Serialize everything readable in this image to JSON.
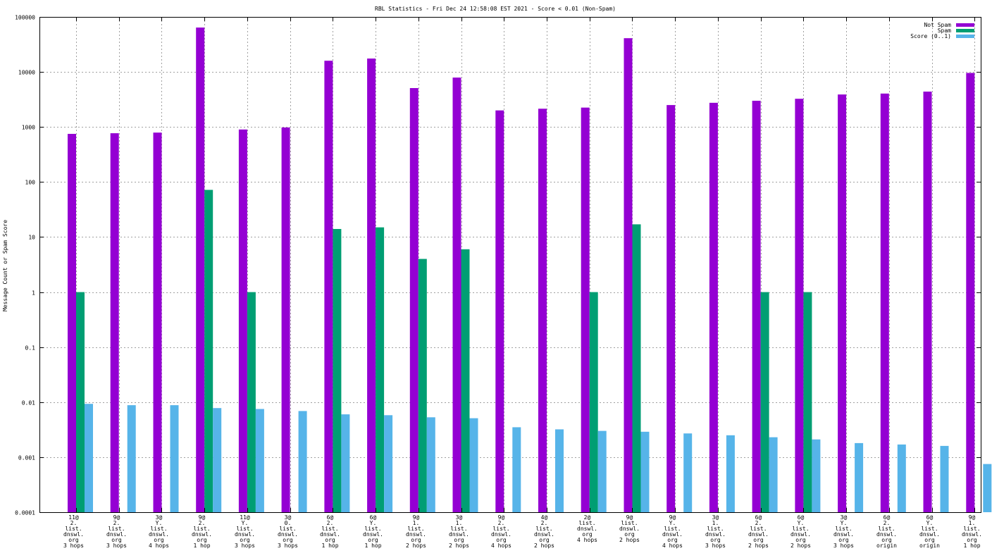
{
  "chart_data": {
    "type": "bar",
    "title": "RBL Statistics - Fri Dec 24 12:58:08 EST 2021 - Score < 0.01 (Non-Spam)",
    "ylabel": "Message Count or Spam Score",
    "xlabel": "",
    "yscale": "log",
    "ylim": [
      0.0001,
      100000
    ],
    "yticks": [
      "0.0001",
      "0.001",
      "0.01",
      "0.1",
      "1",
      "10",
      "100",
      "1000",
      "10000",
      "100000"
    ],
    "grid": true,
    "legend_position": "top-right",
    "categories": [
      [
        "11@",
        "2.",
        "list.",
        "dnswl.",
        "org",
        "3 hops"
      ],
      [
        "9@",
        "2.",
        "list.",
        "dnswl.",
        "org",
        "3 hops"
      ],
      [
        "3@",
        "Y.",
        "list.",
        "dnswl.",
        "org",
        "4 hops"
      ],
      [
        "9@",
        "2.",
        "list.",
        "dnswl.",
        "org",
        "1 hop"
      ],
      [
        "11@",
        "Y.",
        "list.",
        "dnswl.",
        "org",
        "3 hops"
      ],
      [
        "3@",
        "0.",
        "list.",
        "dnswl.",
        "org",
        "3 hops"
      ],
      [
        "6@",
        "2.",
        "list.",
        "dnswl.",
        "org",
        "1 hop"
      ],
      [
        "6@",
        "Y.",
        "list.",
        "dnswl.",
        "org",
        "1 hop"
      ],
      [
        "9@",
        "1.",
        "list.",
        "dnswl.",
        "org",
        "2 hops"
      ],
      [
        "3@",
        "1.",
        "list.",
        "dnswl.",
        "org",
        "2 hops"
      ],
      [
        "9@",
        "2.",
        "list.",
        "dnswl.",
        "org",
        "4 hops"
      ],
      [
        "4@",
        "2.",
        "list.",
        "dnswl.",
        "org",
        "2 hops"
      ],
      [
        "2@",
        "list.",
        "dnswl.",
        "org",
        "4 hops"
      ],
      [
        "9@",
        "list.",
        "dnswl.",
        "org",
        "2 hops"
      ],
      [
        "9@",
        "Y.",
        "list.",
        "dnswl.",
        "org",
        "4 hops"
      ],
      [
        "3@",
        "1.",
        "list.",
        "dnswl.",
        "org",
        "3 hops"
      ],
      [
        "6@",
        "2.",
        "list.",
        "dnswl.",
        "org",
        "2 hops"
      ],
      [
        "6@",
        "Y.",
        "list.",
        "dnswl.",
        "org",
        "2 hops"
      ],
      [
        "3@",
        "Y.",
        "list.",
        "dnswl.",
        "org",
        "3 hops"
      ],
      [
        "6@",
        "2.",
        "list.",
        "dnswl.",
        "org",
        "origin"
      ],
      [
        "6@",
        "Y.",
        "list.",
        "dnswl.",
        "org",
        "origin"
      ],
      [
        "9@",
        "1.",
        "list.",
        "dnswl.",
        "org",
        "1 hop"
      ]
    ],
    "series": [
      {
        "name": "Not Spam",
        "color": "#9400d3",
        "values": [
          750,
          770,
          790,
          64000,
          900,
          980,
          16000,
          17500,
          5100,
          7900,
          2000,
          2150,
          2250,
          41000,
          2500,
          2750,
          3000,
          3250,
          3900,
          4050,
          4400,
          9600
        ]
      },
      {
        "name": "Spam",
        "color": "#009e73",
        "values": [
          1,
          null,
          null,
          72,
          1,
          null,
          14,
          15,
          4,
          6,
          null,
          null,
          1,
          17,
          null,
          null,
          1,
          1,
          null,
          null,
          null,
          null
        ]
      },
      {
        "name": "Score (0..1)",
        "color": "#56b4e9",
        "values": [
          0.0093,
          0.0088,
          0.0088,
          0.0078,
          0.0075,
          0.0069,
          0.006,
          0.0058,
          0.0053,
          0.0051,
          0.0035,
          0.0032,
          0.003,
          0.0029,
          0.0027,
          0.0025,
          0.0023,
          0.0021,
          0.0018,
          0.0017,
          0.0016,
          0.00075
        ]
      }
    ]
  }
}
